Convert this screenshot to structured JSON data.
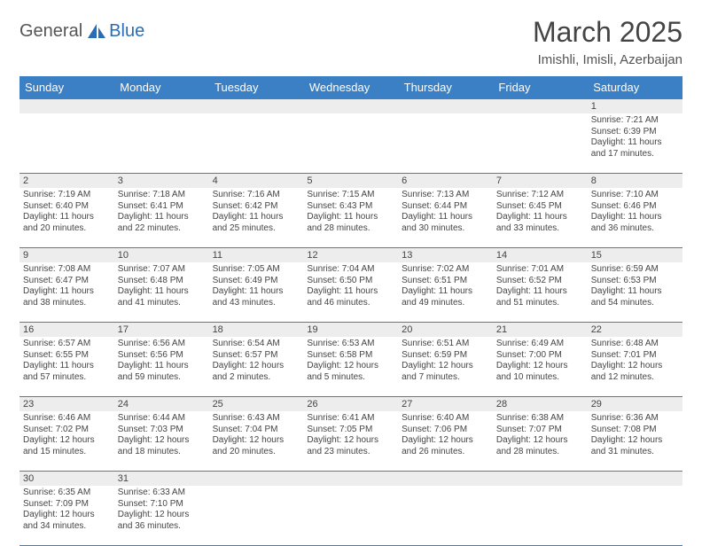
{
  "logo": {
    "part1": "General",
    "part2": "Blue"
  },
  "title": "March 2025",
  "location": "Imishli, Imisli, Azerbaijan",
  "daysOfWeek": [
    "Sunday",
    "Monday",
    "Tuesday",
    "Wednesday",
    "Thursday",
    "Friday",
    "Saturday"
  ],
  "colors": {
    "header_bg": "#3b7fc4",
    "header_fg": "#ffffff",
    "grid_line": "#3b7fc4",
    "daynum_bg": "#ededed",
    "text": "#444444"
  },
  "weeks": [
    [
      {
        "n": "",
        "lines": []
      },
      {
        "n": "",
        "lines": []
      },
      {
        "n": "",
        "lines": []
      },
      {
        "n": "",
        "lines": []
      },
      {
        "n": "",
        "lines": []
      },
      {
        "n": "",
        "lines": []
      },
      {
        "n": "1",
        "lines": [
          "Sunrise: 7:21 AM",
          "Sunset: 6:39 PM",
          "Daylight: 11 hours",
          "and 17 minutes."
        ]
      }
    ],
    [
      {
        "n": "2",
        "lines": [
          "Sunrise: 7:19 AM",
          "Sunset: 6:40 PM",
          "Daylight: 11 hours",
          "and 20 minutes."
        ]
      },
      {
        "n": "3",
        "lines": [
          "Sunrise: 7:18 AM",
          "Sunset: 6:41 PM",
          "Daylight: 11 hours",
          "and 22 minutes."
        ]
      },
      {
        "n": "4",
        "lines": [
          "Sunrise: 7:16 AM",
          "Sunset: 6:42 PM",
          "Daylight: 11 hours",
          "and 25 minutes."
        ]
      },
      {
        "n": "5",
        "lines": [
          "Sunrise: 7:15 AM",
          "Sunset: 6:43 PM",
          "Daylight: 11 hours",
          "and 28 minutes."
        ]
      },
      {
        "n": "6",
        "lines": [
          "Sunrise: 7:13 AM",
          "Sunset: 6:44 PM",
          "Daylight: 11 hours",
          "and 30 minutes."
        ]
      },
      {
        "n": "7",
        "lines": [
          "Sunrise: 7:12 AM",
          "Sunset: 6:45 PM",
          "Daylight: 11 hours",
          "and 33 minutes."
        ]
      },
      {
        "n": "8",
        "lines": [
          "Sunrise: 7:10 AM",
          "Sunset: 6:46 PM",
          "Daylight: 11 hours",
          "and 36 minutes."
        ]
      }
    ],
    [
      {
        "n": "9",
        "lines": [
          "Sunrise: 7:08 AM",
          "Sunset: 6:47 PM",
          "Daylight: 11 hours",
          "and 38 minutes."
        ]
      },
      {
        "n": "10",
        "lines": [
          "Sunrise: 7:07 AM",
          "Sunset: 6:48 PM",
          "Daylight: 11 hours",
          "and 41 minutes."
        ]
      },
      {
        "n": "11",
        "lines": [
          "Sunrise: 7:05 AM",
          "Sunset: 6:49 PM",
          "Daylight: 11 hours",
          "and 43 minutes."
        ]
      },
      {
        "n": "12",
        "lines": [
          "Sunrise: 7:04 AM",
          "Sunset: 6:50 PM",
          "Daylight: 11 hours",
          "and 46 minutes."
        ]
      },
      {
        "n": "13",
        "lines": [
          "Sunrise: 7:02 AM",
          "Sunset: 6:51 PM",
          "Daylight: 11 hours",
          "and 49 minutes."
        ]
      },
      {
        "n": "14",
        "lines": [
          "Sunrise: 7:01 AM",
          "Sunset: 6:52 PM",
          "Daylight: 11 hours",
          "and 51 minutes."
        ]
      },
      {
        "n": "15",
        "lines": [
          "Sunrise: 6:59 AM",
          "Sunset: 6:53 PM",
          "Daylight: 11 hours",
          "and 54 minutes."
        ]
      }
    ],
    [
      {
        "n": "16",
        "lines": [
          "Sunrise: 6:57 AM",
          "Sunset: 6:55 PM",
          "Daylight: 11 hours",
          "and 57 minutes."
        ]
      },
      {
        "n": "17",
        "lines": [
          "Sunrise: 6:56 AM",
          "Sunset: 6:56 PM",
          "Daylight: 11 hours",
          "and 59 minutes."
        ]
      },
      {
        "n": "18",
        "lines": [
          "Sunrise: 6:54 AM",
          "Sunset: 6:57 PM",
          "Daylight: 12 hours",
          "and 2 minutes."
        ]
      },
      {
        "n": "19",
        "lines": [
          "Sunrise: 6:53 AM",
          "Sunset: 6:58 PM",
          "Daylight: 12 hours",
          "and 5 minutes."
        ]
      },
      {
        "n": "20",
        "lines": [
          "Sunrise: 6:51 AM",
          "Sunset: 6:59 PM",
          "Daylight: 12 hours",
          "and 7 minutes."
        ]
      },
      {
        "n": "21",
        "lines": [
          "Sunrise: 6:49 AM",
          "Sunset: 7:00 PM",
          "Daylight: 12 hours",
          "and 10 minutes."
        ]
      },
      {
        "n": "22",
        "lines": [
          "Sunrise: 6:48 AM",
          "Sunset: 7:01 PM",
          "Daylight: 12 hours",
          "and 12 minutes."
        ]
      }
    ],
    [
      {
        "n": "23",
        "lines": [
          "Sunrise: 6:46 AM",
          "Sunset: 7:02 PM",
          "Daylight: 12 hours",
          "and 15 minutes."
        ]
      },
      {
        "n": "24",
        "lines": [
          "Sunrise: 6:44 AM",
          "Sunset: 7:03 PM",
          "Daylight: 12 hours",
          "and 18 minutes."
        ]
      },
      {
        "n": "25",
        "lines": [
          "Sunrise: 6:43 AM",
          "Sunset: 7:04 PM",
          "Daylight: 12 hours",
          "and 20 minutes."
        ]
      },
      {
        "n": "26",
        "lines": [
          "Sunrise: 6:41 AM",
          "Sunset: 7:05 PM",
          "Daylight: 12 hours",
          "and 23 minutes."
        ]
      },
      {
        "n": "27",
        "lines": [
          "Sunrise: 6:40 AM",
          "Sunset: 7:06 PM",
          "Daylight: 12 hours",
          "and 26 minutes."
        ]
      },
      {
        "n": "28",
        "lines": [
          "Sunrise: 6:38 AM",
          "Sunset: 7:07 PM",
          "Daylight: 12 hours",
          "and 28 minutes."
        ]
      },
      {
        "n": "29",
        "lines": [
          "Sunrise: 6:36 AM",
          "Sunset: 7:08 PM",
          "Daylight: 12 hours",
          "and 31 minutes."
        ]
      }
    ],
    [
      {
        "n": "30",
        "lines": [
          "Sunrise: 6:35 AM",
          "Sunset: 7:09 PM",
          "Daylight: 12 hours",
          "and 34 minutes."
        ]
      },
      {
        "n": "31",
        "lines": [
          "Sunrise: 6:33 AM",
          "Sunset: 7:10 PM",
          "Daylight: 12 hours",
          "and 36 minutes."
        ]
      },
      {
        "n": "",
        "lines": []
      },
      {
        "n": "",
        "lines": []
      },
      {
        "n": "",
        "lines": []
      },
      {
        "n": "",
        "lines": []
      },
      {
        "n": "",
        "lines": []
      }
    ]
  ]
}
